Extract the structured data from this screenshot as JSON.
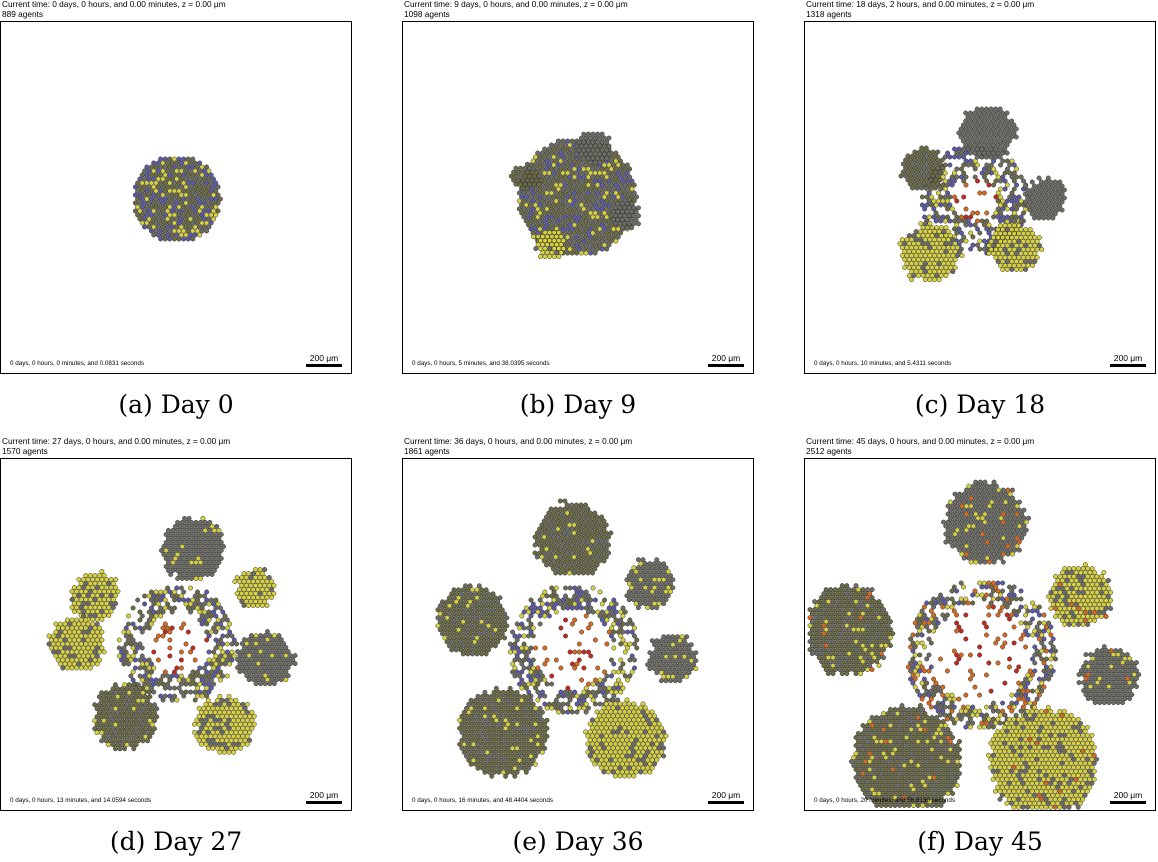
{
  "palette": {
    "olive": "#6b6b47",
    "yellow": "#d8d23c",
    "blue": "#5a5aa8",
    "gray": "#6d6d66",
    "orange": "#d86a1e",
    "red": "#c4281e"
  },
  "panels": [
    {
      "header_time": "Current time: 0 days, 0 hours, and 0.00 minutes, z = 0.00 μm",
      "agent_count": "889 agents",
      "elapsed": "0 days, 0 hours, 0 minutes, and 0.0831 seconds",
      "scale": "200 μm",
      "caption": "(a) Day 0",
      "day": 0
    },
    {
      "header_time": "Current time: 9 days, 0 hours, and 0.00 minutes, z = 0.00 μm",
      "agent_count": "1098 agents",
      "elapsed": "0 days, 0 hours, 5 minutes, and 38.0395 seconds",
      "scale": "200 μm",
      "caption": "(b) Day 9",
      "day": 9
    },
    {
      "header_time": "Current time: 18 days, 2 hours, and 0.00 minutes, z = 0.00 μm",
      "agent_count": "1318 agents",
      "elapsed": "0 days, 0 hours, 10 minutes, and 5.4311 seconds",
      "scale": "200 μm",
      "caption": "(c) Day 18",
      "day": 18
    },
    {
      "header_time": "Current time: 27 days, 0 hours, and 0.00 minutes, z = 0.00 μm",
      "agent_count": "1570 agents",
      "elapsed": "0 days, 0 hours, 13 minutes, and 14.0594 seconds",
      "scale": "200 μm",
      "caption": "(d) Day 27",
      "day": 27
    },
    {
      "header_time": "Current time: 36 days, 0 hours, and 0.00 minutes, z = 0.00 μm",
      "agent_count": "1861 agents",
      "elapsed": "0 days, 0 hours, 16 minutes, and 48.4404 seconds",
      "scale": "200 μm",
      "caption": "(e) Day 36",
      "day": 36
    },
    {
      "header_time": "Current time: 45 days, 0 hours, and 0.00 minutes, z = 0.00 μm",
      "agent_count": "2512 agents",
      "elapsed": "0 days, 0 hours, 20 minutes, and 58.8130 seconds",
      "scale": "200 μm",
      "caption": "(f) Day 45",
      "day": 45
    }
  ]
}
